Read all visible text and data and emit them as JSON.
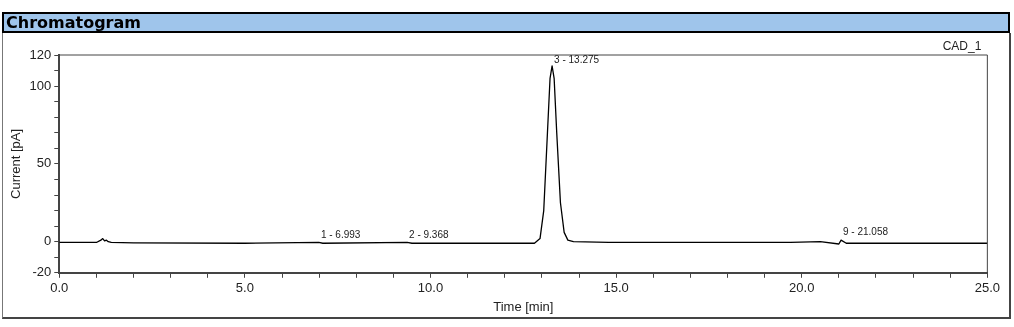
{
  "chart_data": {
    "type": "line",
    "title": "Chromatogram",
    "xlabel": "Time [min]",
    "ylabel": "Current [pA]",
    "x": [
      0,
      1.0,
      1.12,
      1.17,
      1.22,
      1.27,
      1.32,
      1.4,
      2,
      5,
      6.99,
      7.1,
      9.37,
      9.5,
      12.8,
      12.95,
      13.05,
      13.15,
      13.22,
      13.275,
      13.33,
      13.4,
      13.5,
      13.6,
      13.7,
      13.85,
      14.8,
      19.7,
      20.5,
      21.0,
      21.06,
      21.2,
      25
    ],
    "series": [
      {
        "color": "#000000",
        "values": [
          -0.5,
          -0.5,
          1,
          2,
          0.5,
          1,
          0,
          -0.5,
          -0.8,
          -1,
          -0.5,
          -1,
          -0.5,
          -1,
          -1,
          2,
          20,
          70,
          105,
          113,
          105,
          70,
          25,
          6,
          1,
          0,
          -0.5,
          -0.5,
          0,
          -1.5,
          1,
          -1,
          -1
        ]
      }
    ],
    "xlim": [
      0,
      25
    ],
    "ylim": [
      -20,
      120
    ],
    "xticks": [
      {
        "value": 0,
        "label": "0.0"
      },
      {
        "value": 1,
        "label": null
      },
      {
        "value": 2,
        "label": null
      },
      {
        "value": 3,
        "label": null
      },
      {
        "value": 4,
        "label": null
      },
      {
        "value": 5,
        "label": "5.0"
      },
      {
        "value": 6,
        "label": null
      },
      {
        "value": 7,
        "label": null
      },
      {
        "value": 8,
        "label": null
      },
      {
        "value": 9,
        "label": null
      },
      {
        "value": 10,
        "label": "10.0"
      },
      {
        "value": 11,
        "label": null
      },
      {
        "value": 12,
        "label": null
      },
      {
        "value": 13,
        "label": null
      },
      {
        "value": 14,
        "label": null
      },
      {
        "value": 15,
        "label": "15.0"
      },
      {
        "value": 16,
        "label": null
      },
      {
        "value": 17,
        "label": null
      },
      {
        "value": 18,
        "label": null
      },
      {
        "value": 19,
        "label": null
      },
      {
        "value": 20,
        "label": "20.0"
      },
      {
        "value": 21,
        "label": null
      },
      {
        "value": 22,
        "label": null
      },
      {
        "value": 23,
        "label": null
      },
      {
        "value": 24,
        "label": null
      },
      {
        "value": 25,
        "label": "25.0"
      }
    ],
    "yticks": [
      -20,
      {
        "value": -10,
        "label": null
      },
      0,
      {
        "value": 10,
        "label": null
      },
      {
        "value": 20,
        "label": null
      },
      {
        "value": 30,
        "label": null
      },
      {
        "value": 40,
        "label": null
      },
      50,
      {
        "value": 60,
        "label": null
      },
      {
        "value": 70,
        "label": null
      },
      {
        "value": 80,
        "label": null
      },
      {
        "value": 90,
        "label": null
      },
      100,
      {
        "value": 110,
        "label": null
      },
      120
    ],
    "annotations": [
      "CAD_1",
      {
        "text": "1 - 6.993",
        "x": 6.993,
        "y": 0
      },
      {
        "text": "2 - 9.368",
        "x": 9.368,
        "y": 0
      },
      {
        "text": "3 - 13.275",
        "x": 13.275,
        "y": 113
      },
      {
        "text": "9 - 21.058",
        "x": 21.058,
        "y": 2
      }
    ],
    "grid": false,
    "legend": false,
    "marker": "none",
    "line_style": "solid"
  }
}
